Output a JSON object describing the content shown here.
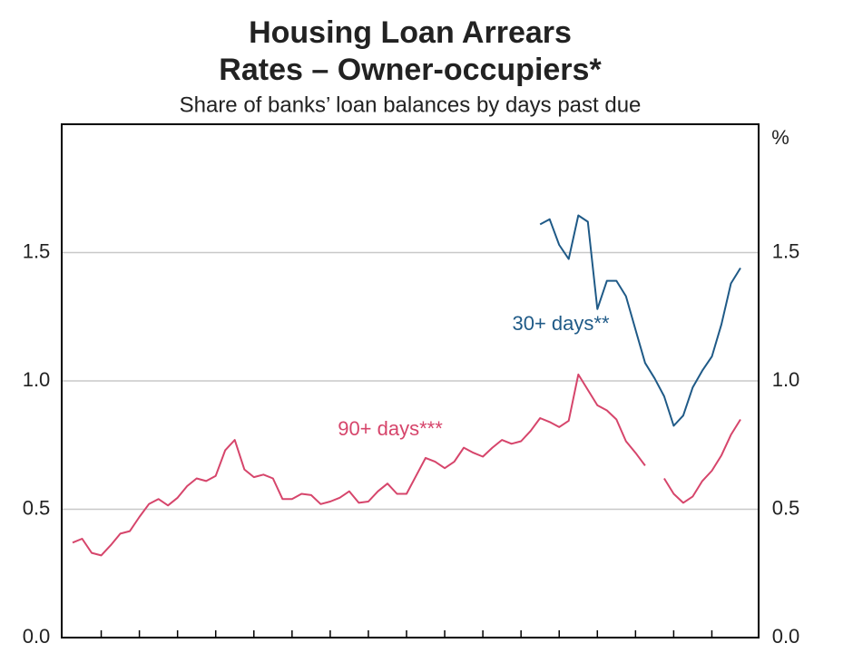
{
  "chart_data": {
    "type": "line",
    "title": [
      "Housing Loan Arrears",
      "Rates – Owner-occupiers*"
    ],
    "subtitle": "Share of banks’ loan balances by days past due",
    "y2_unit": "%",
    "categories": [
      null,
      null,
      null,
      null,
      null,
      null,
      null,
      null,
      null,
      null,
      null,
      null,
      null,
      null,
      null,
      null,
      null,
      null,
      null,
      null,
      null,
      null,
      null,
      null,
      null,
      null,
      null,
      null,
      null,
      null,
      null,
      null,
      null,
      null,
      null,
      null,
      null,
      null,
      null,
      null,
      null,
      null,
      null,
      null,
      null,
      null,
      null,
      null,
      null,
      null,
      null,
      null,
      null,
      null,
      null,
      null,
      null,
      null,
      null,
      null,
      null,
      null,
      null,
      null,
      null,
      null,
      null,
      null,
      null,
      null,
      null
    ],
    "series": [
      {
        "name": "30+ days**",
        "color": "#1f5a87",
        "values": [
          null,
          null,
          null,
          null,
          null,
          null,
          null,
          null,
          null,
          null,
          null,
          null,
          null,
          null,
          null,
          null,
          null,
          null,
          null,
          null,
          null,
          null,
          null,
          null,
          null,
          null,
          null,
          null,
          null,
          null,
          null,
          null,
          null,
          null,
          null,
          null,
          null,
          null,
          null,
          null,
          null,
          null,
          null,
          null,
          null,
          null,
          null,
          null,
          null,
          1.61,
          1.63,
          1.53,
          1.475,
          1.645,
          1.62,
          1.28,
          1.39,
          1.39,
          1.33,
          1.2,
          1.07,
          1.01,
          0.94,
          0.825,
          0.865,
          0.975,
          1.04,
          1.095,
          1.22,
          1.38,
          1.44
        ]
      },
      {
        "name": "90+ days***",
        "color": "#d6456b",
        "values": [
          0.37,
          0.385,
          0.33,
          0.32,
          0.36,
          0.405,
          0.415,
          0.47,
          0.52,
          0.54,
          0.515,
          0.545,
          0.59,
          0.62,
          0.61,
          0.63,
          0.73,
          0.77,
          0.655,
          0.625,
          0.635,
          0.62,
          0.54,
          0.54,
          0.56,
          0.555,
          0.52,
          0.53,
          0.545,
          0.57,
          0.525,
          0.53,
          0.57,
          0.6,
          0.56,
          0.56,
          0.63,
          0.7,
          0.685,
          0.66,
          0.685,
          0.74,
          0.72,
          0.705,
          0.74,
          0.77,
          0.755,
          0.765,
          0.805,
          0.855,
          0.84,
          0.82,
          0.845,
          1.025,
          0.965,
          0.905,
          0.885,
          0.85,
          0.765,
          0.72,
          0.67,
          null,
          0.62,
          0.56,
          0.525,
          0.55,
          0.61,
          0.65,
          0.71,
          0.79,
          0.85
        ]
      }
    ],
    "ylim": [
      0,
      2
    ],
    "yticks": [
      {
        "value": 0,
        "label": "0.0"
      },
      {
        "value": 0.5,
        "label": "0.5"
      },
      {
        "value": 1,
        "label": "1.0"
      },
      {
        "value": 1.5,
        "label": "1.5"
      }
    ],
    "y2lim": [
      0,
      2
    ],
    "y2ticks": [
      {
        "value": 0,
        "label": "0.0"
      },
      {
        "value": 0.5,
        "label": "0.5"
      },
      {
        "value": 1,
        "label": "1.0"
      },
      {
        "value": 1.5,
        "label": "1.5"
      }
    ],
    "grid": true
  }
}
